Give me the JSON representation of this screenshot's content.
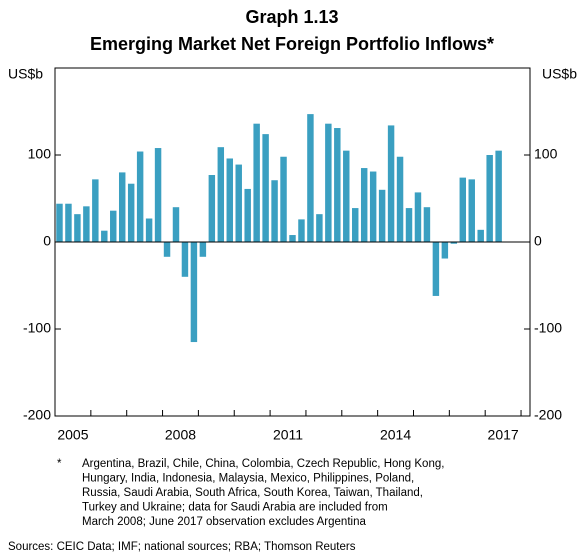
{
  "chart_data": {
    "type": "bar",
    "title": "Graph 1.13",
    "subtitle": "Emerging Market Net Foreign Portfolio Inflows*",
    "y_unit": "US$b",
    "y2_unit": "US$b",
    "categories": [
      null,
      null,
      null,
      null,
      null,
      null,
      null,
      null,
      null,
      null,
      null,
      null,
      null,
      null,
      null,
      null,
      null,
      null,
      null,
      null,
      null,
      null,
      null,
      null,
      null,
      null,
      null,
      null,
      null,
      null,
      null,
      null,
      null,
      null,
      null,
      null,
      null,
      null,
      null,
      null,
      null,
      null,
      null,
      null,
      null,
      null,
      null,
      null,
      null,
      null
    ],
    "values": [
      44,
      44,
      32,
      41,
      72,
      13,
      36,
      80,
      67,
      104,
      27,
      108,
      -17,
      40,
      -40,
      -115,
      -17,
      77,
      109,
      96,
      89,
      61,
      136,
      124,
      71,
      98,
      8,
      26,
      147,
      32,
      136,
      131,
      105,
      39,
      85,
      81,
      60,
      134,
      98,
      39,
      57,
      40,
      -62,
      -19,
      -2,
      74,
      72,
      14,
      100,
      105
    ],
    "color": "#3a9fc1",
    "xlim": [
      2005,
      2018.25
    ],
    "xticks": [
      {
        "value": 2005.5,
        "label": "2005"
      },
      {
        "value": 2008.5,
        "label": "2008"
      },
      {
        "value": 2011.5,
        "label": "2011"
      },
      {
        "value": 2014.5,
        "label": "2014"
      },
      {
        "value": 2017.5,
        "label": "2017"
      }
    ],
    "ylim": [
      -200,
      200
    ],
    "yticks": [
      -200,
      -100,
      0,
      100
    ],
    "y2lim": [
      -200,
      200
    ],
    "y2ticks": [
      -200,
      -100,
      0,
      100
    ],
    "footnote_mark": "*",
    "footnote": [
      "Argentina, Brazil, Chile, China, Colombia, Czech Republic, Hong Kong,",
      "Hungary, India, Indonesia, Malaysia, Mexico, Philippines, Poland,",
      "Russia, Saudi Arabia, South Africa, South Korea, Taiwan, Thailand,",
      "Turkey and Ukraine; data for Saudi Arabia are included from",
      "March 2008; June 2017 observation excludes Argentina"
    ],
    "sources": "Sources: CEIC Data; IMF; national sources; RBA; Thomson Reuters"
  }
}
